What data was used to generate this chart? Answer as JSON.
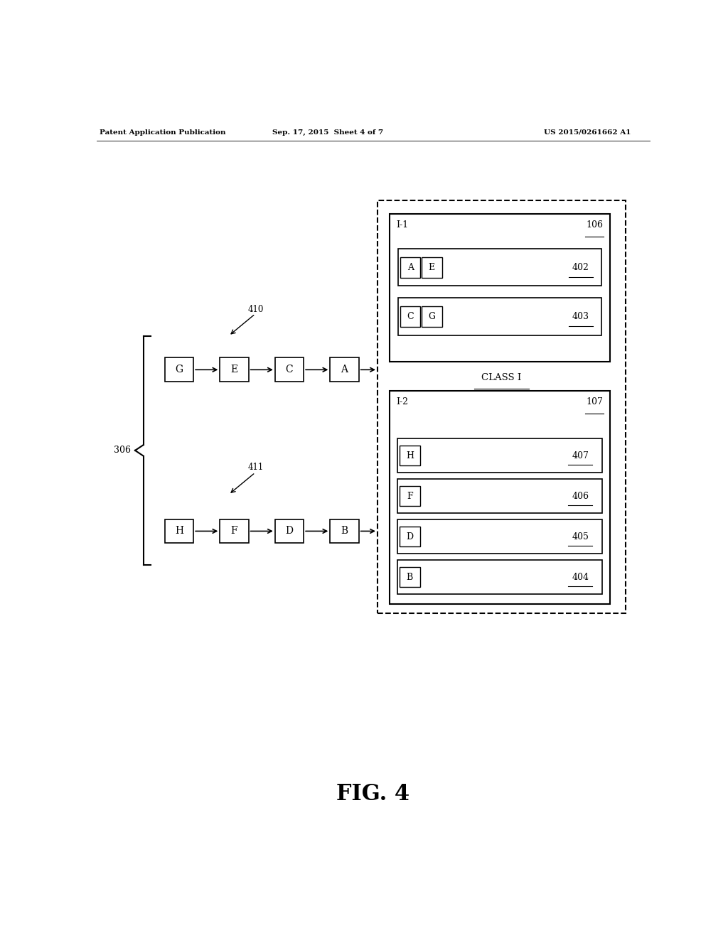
{
  "bg_color": "#ffffff",
  "header_left": "Patent Application Publication",
  "header_mid": "Sep. 17, 2015  Sheet 4 of 7",
  "header_right": "US 2015/0261662 A1",
  "fig_label": "FIG. 4",
  "label_306": "306",
  "label_410": "410",
  "label_411": "411",
  "chain1": [
    "G",
    "E",
    "C",
    "A"
  ],
  "chain2": [
    "H",
    "F",
    "D",
    "B"
  ],
  "class1_label": "I-1",
  "class1_ref": "106",
  "class1_rows": [
    {
      "cells": [
        "A",
        "E"
      ],
      "ref": "402"
    },
    {
      "cells": [
        "C",
        "G"
      ],
      "ref": "403"
    }
  ],
  "class_label": "CLASS I",
  "class2_label": "I-2",
  "class2_ref": "107",
  "class2_rows": [
    {
      "cells": [
        "B"
      ],
      "ref": "404"
    },
    {
      "cells": [
        "D"
      ],
      "ref": "405"
    },
    {
      "cells": [
        "F"
      ],
      "ref": "406"
    },
    {
      "cells": [
        "H"
      ],
      "ref": "407"
    }
  ]
}
